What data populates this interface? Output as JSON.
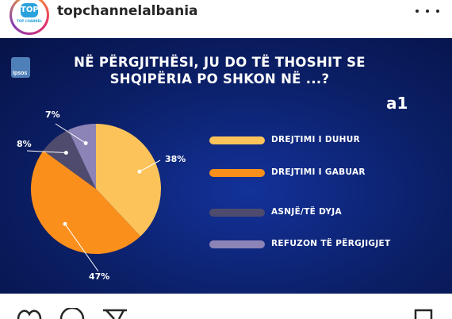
{
  "post": {
    "username": "topchannelalbania",
    "avatar_logo_text": "TOP",
    "avatar_logo_subtext": "TOP CHANNEL"
  },
  "image": {
    "brand_logo_text": "Ipsos",
    "title_line1": "NË PËRGJITHËSI, JU DO TË THOSHIT SE",
    "title_line2": "SHQIPËRIA PO SHKON NË ...?",
    "code": "a1"
  },
  "chart_data": {
    "type": "pie",
    "title": "NË PËRGJITHËSI, JU DO TË THOSHIT SE SHQIPËRIA PO SHKON NË ...?",
    "categories": [
      "DREJTIMI I DUHUR",
      "DREJTIMI I GABUAR",
      "ASNJË/TË DYJA",
      "REFUZON TË PËRGJIGJET"
    ],
    "values": [
      38,
      47,
      8,
      7
    ],
    "value_labels": [
      "38%",
      "47%",
      "8%",
      "7%"
    ],
    "colors": [
      "#fbc35a",
      "#fb8f1c",
      "#4f4b6e",
      "#8c83b7"
    ],
    "legend_position": "right"
  },
  "icons": [
    "heart-icon",
    "comment-icon",
    "share-icon",
    "bookmark-icon",
    "more-icon"
  ]
}
